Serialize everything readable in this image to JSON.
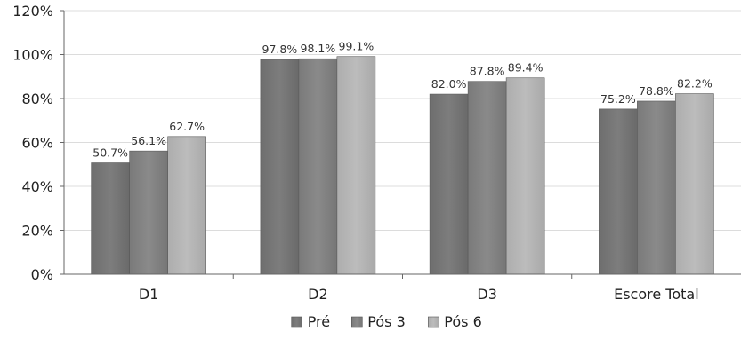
{
  "chart_data": {
    "type": "bar",
    "title": "",
    "xlabel": "",
    "ylabel": "",
    "categories": [
      "D1",
      "D2",
      "D3",
      "Escore Total"
    ],
    "series": [
      {
        "name": "Pré",
        "values": [
          50.7,
          97.8,
          82.0,
          75.2
        ],
        "labels": [
          "50.7%",
          "97.8%",
          "82.0%",
          "75.2%"
        ],
        "color": "#777777"
      },
      {
        "name": "Pós 3",
        "values": [
          56.1,
          98.1,
          87.8,
          78.8
        ],
        "labels": [
          "56.1%",
          "98.1%",
          "87.8%",
          "78.8%"
        ],
        "color": "#828282"
      },
      {
        "name": "Pós 6",
        "values": [
          62.7,
          99.1,
          89.4,
          82.2
        ],
        "labels": [
          "62.7%",
          "99.1%",
          "89.4%",
          "82.2%"
        ],
        "color": "#b4b4b4"
      }
    ],
    "ylim": [
      0,
      120
    ],
    "yticks": [
      0,
      20,
      40,
      60,
      80,
      100,
      120
    ],
    "ytick_labels": [
      "0%",
      "20%",
      "40%",
      "60%",
      "80%",
      "100%",
      "120%"
    ],
    "grid": true,
    "legend_position": "bottom"
  }
}
